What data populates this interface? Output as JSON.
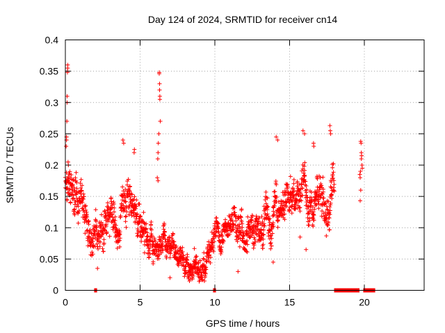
{
  "chart_data": {
    "type": "scatter",
    "title": "Day 124 of 2024, SRMTID for receiver cn14",
    "xlabel": "GPS time / hours",
    "ylabel": "SRMTID / TECUs",
    "xlim": [
      0,
      24
    ],
    "ylim": [
      0,
      0.4
    ],
    "xticks": [
      0,
      5,
      10,
      15,
      20
    ],
    "xtick_labels": [
      "0",
      "5",
      "10",
      "15",
      "20"
    ],
    "yticks": [
      0,
      0.05,
      0.1,
      0.15,
      0.2,
      0.25,
      0.3,
      0.35,
      0.4
    ],
    "ytick_labels": [
      "0",
      "0.05",
      "0.1",
      "0.15",
      "0.2",
      "0.25",
      "0.3",
      "0.35",
      "0.4"
    ],
    "grid": true,
    "marker": "plus",
    "color": "#ff0000",
    "series": [
      {
        "name": "SRMTID",
        "trend": [
          [
            0.0,
            0.17
          ],
          [
            0.3,
            0.14
          ],
          [
            0.6,
            0.13
          ],
          [
            1.0,
            0.12
          ],
          [
            1.3,
            0.13
          ],
          [
            1.6,
            0.1
          ],
          [
            2.0,
            0.085
          ],
          [
            2.3,
            0.09
          ],
          [
            2.6,
            0.11
          ],
          [
            2.8,
            0.13
          ],
          [
            3.2,
            0.11
          ],
          [
            3.6,
            0.12
          ],
          [
            3.9,
            0.15
          ],
          [
            4.3,
            0.11
          ],
          [
            4.7,
            0.12
          ],
          [
            5.0,
            0.1
          ],
          [
            5.5,
            0.09
          ],
          [
            5.8,
            0.08
          ],
          [
            6.2,
            0.07
          ],
          [
            6.6,
            0.09
          ],
          [
            7.0,
            0.07
          ],
          [
            7.4,
            0.05
          ],
          [
            7.8,
            0.045
          ],
          [
            8.2,
            0.04
          ],
          [
            8.6,
            0.04
          ],
          [
            9.0,
            0.035
          ],
          [
            9.4,
            0.05
          ],
          [
            9.8,
            0.07
          ],
          [
            10.2,
            0.1
          ],
          [
            10.6,
            0.09
          ],
          [
            11.0,
            0.1
          ],
          [
            11.4,
            0.12
          ],
          [
            11.8,
            0.1
          ],
          [
            12.2,
            0.11
          ],
          [
            12.6,
            0.09
          ],
          [
            13.0,
            0.1
          ],
          [
            13.4,
            0.12
          ],
          [
            13.8,
            0.11
          ],
          [
            14.2,
            0.14
          ],
          [
            14.6,
            0.13
          ],
          [
            15.0,
            0.15
          ],
          [
            15.4,
            0.16
          ],
          [
            15.8,
            0.17
          ],
          [
            16.2,
            0.15
          ],
          [
            16.6,
            0.14
          ],
          [
            17.0,
            0.15
          ],
          [
            17.4,
            0.13
          ],
          [
            17.8,
            0.16
          ]
        ],
        "spread": [
          [
            0,
            0.045
          ],
          [
            5,
            0.04
          ],
          [
            7,
            0.025
          ],
          [
            10,
            0.03
          ],
          [
            14,
            0.04
          ],
          [
            18,
            0.045
          ]
        ],
        "spikes": [
          [
            0.08,
            0.24
          ],
          [
            0.08,
            0.245
          ],
          [
            0.1,
            0.27
          ],
          [
            0.12,
            0.31
          ],
          [
            0.12,
            0.3
          ],
          [
            0.14,
            0.35
          ],
          [
            0.14,
            0.348
          ],
          [
            0.16,
            0.36
          ],
          [
            0.16,
            0.355
          ],
          [
            0.18,
            0.205
          ],
          [
            0.2,
            0.2
          ],
          [
            0.05,
            0.23
          ],
          [
            6.28,
            0.348
          ],
          [
            6.28,
            0.346
          ],
          [
            6.3,
            0.33
          ],
          [
            6.3,
            0.32
          ],
          [
            6.32,
            0.31
          ],
          [
            6.32,
            0.305
          ],
          [
            6.35,
            0.27
          ],
          [
            6.25,
            0.25
          ],
          [
            6.22,
            0.235
          ],
          [
            6.2,
            0.22
          ],
          [
            6.18,
            0.21
          ],
          [
            6.15,
            0.18
          ],
          [
            6.2,
            0.175
          ],
          [
            3.85,
            0.24
          ],
          [
            3.9,
            0.235
          ],
          [
            4.6,
            0.22
          ],
          [
            4.62,
            0.225
          ],
          [
            14.1,
            0.245
          ],
          [
            14.2,
            0.24
          ],
          [
            15.9,
            0.255
          ],
          [
            16.0,
            0.25
          ],
          [
            17.7,
            0.263
          ],
          [
            17.72,
            0.255
          ],
          [
            17.75,
            0.25
          ],
          [
            16.6,
            0.235
          ],
          [
            16.62,
            0.23
          ],
          [
            13.9,
            0.045
          ],
          [
            11.55,
            0.03
          ],
          [
            2.15,
            0.035
          ],
          [
            8.3,
            0.015
          ],
          [
            8.5,
            0.018
          ],
          [
            7.0,
            0.02
          ],
          [
            16.1,
            0.065
          ],
          [
            9.3,
            0.015
          ],
          [
            5.3,
            0.06
          ],
          [
            15.7,
            0.085
          ]
        ],
        "isolated_points": [
          [
            19.76,
            0.238
          ],
          [
            19.78,
            0.235
          ],
          [
            19.8,
            0.22
          ],
          [
            19.82,
            0.215
          ],
          [
            19.8,
            0.21
          ],
          [
            19.74,
            0.19
          ],
          [
            19.7,
            0.185
          ],
          [
            19.72,
            0.18
          ],
          [
            19.76,
            0.16
          ],
          [
            19.72,
            0.143
          ],
          [
            19.84,
            0.2
          ],
          [
            19.86,
            0.195
          ]
        ],
        "zero_marks": [
          {
            "from": 1.95,
            "to": 2.1,
            "y": 0
          },
          {
            "from": 9.9,
            "to": 10.05,
            "y": 0
          },
          {
            "from": 18.0,
            "to": 19.65,
            "y": 0
          },
          {
            "from": 19.95,
            "to": 20.7,
            "y": 0
          }
        ],
        "x_range": [
          0,
          18.0
        ],
        "point_count": 1650
      }
    ]
  }
}
